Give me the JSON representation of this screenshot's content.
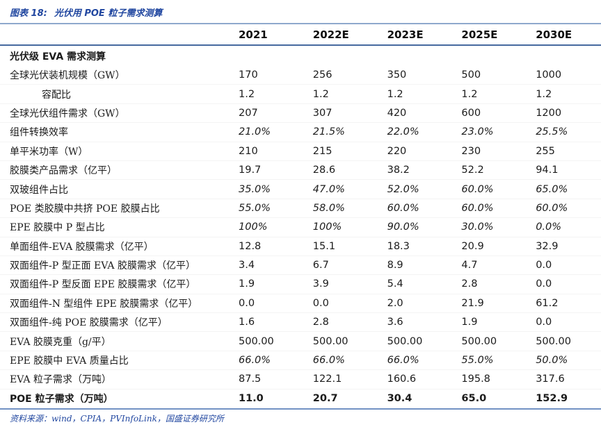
{
  "title": {
    "prefix": "图表 18:",
    "text": "光伏用 POE 粒子需求测算"
  },
  "table": {
    "columns": [
      "2021",
      "2022E",
      "2023E",
      "2025E",
      "2030E"
    ],
    "section_header": "光伏级 EVA 需求测算",
    "rows": [
      {
        "label": "全球光伏装机规模（GW）",
        "values": [
          "170",
          "256",
          "350",
          "500",
          "1000"
        ],
        "italic": false,
        "bold": false,
        "indent": false
      },
      {
        "label": "容配比",
        "values": [
          "1.2",
          "1.2",
          "1.2",
          "1.2",
          "1.2"
        ],
        "italic": false,
        "bold": false,
        "indent": true
      },
      {
        "label": "全球光伏组件需求（GW）",
        "values": [
          "207",
          "307",
          "420",
          "600",
          "1200"
        ],
        "italic": false,
        "bold": false,
        "indent": false
      },
      {
        "label": "组件转换效率",
        "values": [
          "21.0%",
          "21.5%",
          "22.0%",
          "23.0%",
          "25.5%"
        ],
        "italic": true,
        "bold": false,
        "indent": false
      },
      {
        "label": "单平米功率（W）",
        "values": [
          "210",
          "215",
          "220",
          "230",
          "255"
        ],
        "italic": false,
        "bold": false,
        "indent": false
      },
      {
        "label": "胶膜类产品需求（亿平）",
        "values": [
          "19.7",
          "28.6",
          "38.2",
          "52.2",
          "94.1"
        ],
        "italic": false,
        "bold": false,
        "indent": false
      },
      {
        "label": "双玻组件占比",
        "values": [
          "35.0%",
          "47.0%",
          "52.0%",
          "60.0%",
          "65.0%"
        ],
        "italic": true,
        "bold": false,
        "indent": false
      },
      {
        "label": "POE 类胶膜中共挤 POE 胶膜占比",
        "values": [
          "55.0%",
          "58.0%",
          "60.0%",
          "60.0%",
          "60.0%"
        ],
        "italic": true,
        "bold": false,
        "indent": false
      },
      {
        "label": "EPE 胶膜中 P 型占比",
        "values": [
          "100%",
          "100%",
          "90.0%",
          "30.0%",
          "0.0%"
        ],
        "italic": true,
        "bold": false,
        "indent": false
      },
      {
        "label": "单面组件-EVA 胶膜需求（亿平）",
        "values": [
          "12.8",
          "15.1",
          "18.3",
          "20.9",
          "32.9"
        ],
        "italic": false,
        "bold": false,
        "indent": false
      },
      {
        "label": "双面组件-P 型正面 EVA 胶膜需求（亿平）",
        "values": [
          "3.4",
          "6.7",
          "8.9",
          "4.7",
          "0.0"
        ],
        "italic": false,
        "bold": false,
        "indent": false
      },
      {
        "label": "双面组件-P 型反面 EPE 胶膜需求（亿平）",
        "values": [
          "1.9",
          "3.9",
          "5.4",
          "2.8",
          "0.0"
        ],
        "italic": false,
        "bold": false,
        "indent": false
      },
      {
        "label": "双面组件-N 型组件 EPE 胶膜需求（亿平）",
        "values": [
          "0.0",
          "0.0",
          "2.0",
          "21.9",
          "61.2"
        ],
        "italic": false,
        "bold": false,
        "indent": false
      },
      {
        "label": "双面组件-纯 POE 胶膜需求（亿平）",
        "values": [
          "1.6",
          "2.8",
          "3.6",
          "1.9",
          "0.0"
        ],
        "italic": false,
        "bold": false,
        "indent": false
      },
      {
        "label": "EVA 胶膜克重（g/平）",
        "values": [
          "500.00",
          "500.00",
          "500.00",
          "500.00",
          "500.00"
        ],
        "italic": false,
        "bold": false,
        "indent": false
      },
      {
        "label": "EPE 胶膜中 EVA 质量占比",
        "values": [
          "66.0%",
          "66.0%",
          "66.0%",
          "55.0%",
          "50.0%"
        ],
        "italic": true,
        "bold": false,
        "indent": false
      },
      {
        "label": "EVA 粒子需求（万吨）",
        "values": [
          "87.5",
          "122.1",
          "160.6",
          "195.8",
          "317.6"
        ],
        "italic": false,
        "bold": false,
        "indent": false
      },
      {
        "label": "POE 粒子需求（万吨）",
        "values": [
          "11.0",
          "20.7",
          "30.4",
          "65.0",
          "152.9"
        ],
        "italic": false,
        "bold": true,
        "indent": false
      }
    ]
  },
  "footer": {
    "source": "资料来源：wind，CPIA，PVInfoLink，国盛证券研究所"
  },
  "colors": {
    "title_blue": "#2147a0",
    "title_underline": "#8ea9cd",
    "header_border": "#46699f",
    "table_bottom_border": "#7292c4",
    "text": "#1b1b1b"
  }
}
